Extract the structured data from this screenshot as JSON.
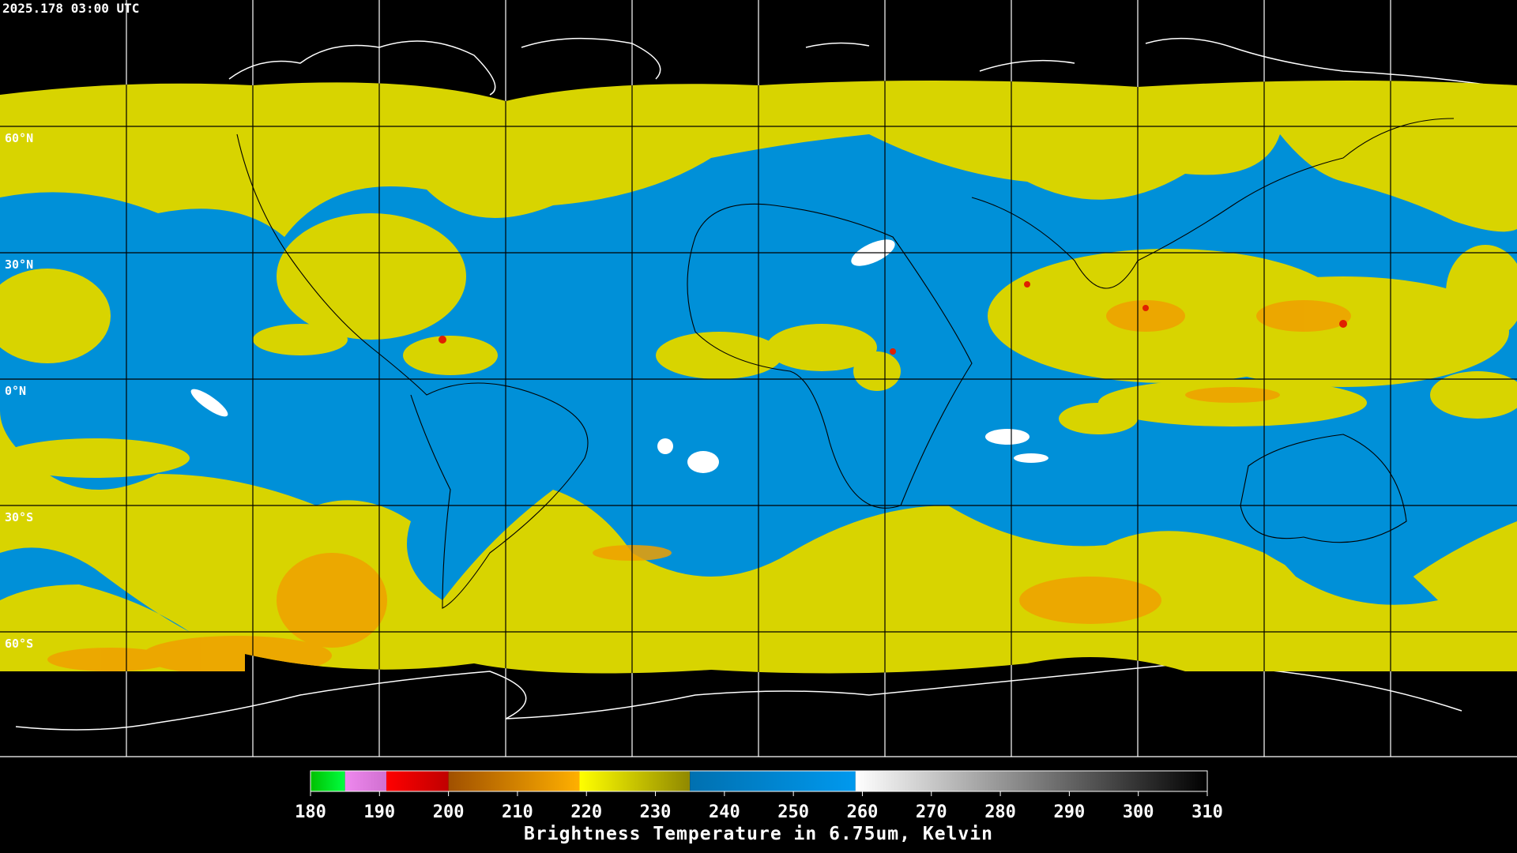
{
  "header": {
    "timestamp": "2025.178 03:00 UTC"
  },
  "map": {
    "lat_labels": [
      "60°N",
      "30°N",
      "0°N",
      "30°S",
      "60°S"
    ]
  },
  "colorbar": {
    "range": [
      180,
      310
    ],
    "ticks": [
      180,
      190,
      200,
      210,
      220,
      230,
      240,
      250,
      260,
      270,
      280,
      290,
      300,
      310
    ],
    "label": "Brightness Temperature in 6.75um, Kelvin",
    "segments": [
      {
        "from": 180,
        "to": 185,
        "colors": [
          "#00c000",
          "#00ff40"
        ]
      },
      {
        "from": 185,
        "to": 191,
        "colors": [
          "#ee88ee",
          "#d070d0"
        ]
      },
      {
        "from": 191,
        "to": 200,
        "colors": [
          "#ff0000",
          "#c00000"
        ]
      },
      {
        "from": 200,
        "to": 219,
        "colors": [
          "#a05000",
          "#ffb000"
        ]
      },
      {
        "from": 219,
        "to": 235,
        "colors": [
          "#ffff00",
          "#908800"
        ]
      },
      {
        "from": 235,
        "to": 259,
        "colors": [
          "#0070b0",
          "#0099ee"
        ]
      },
      {
        "from": 259,
        "to": 310,
        "colors": [
          "#ffffff",
          "#000000"
        ]
      }
    ]
  }
}
